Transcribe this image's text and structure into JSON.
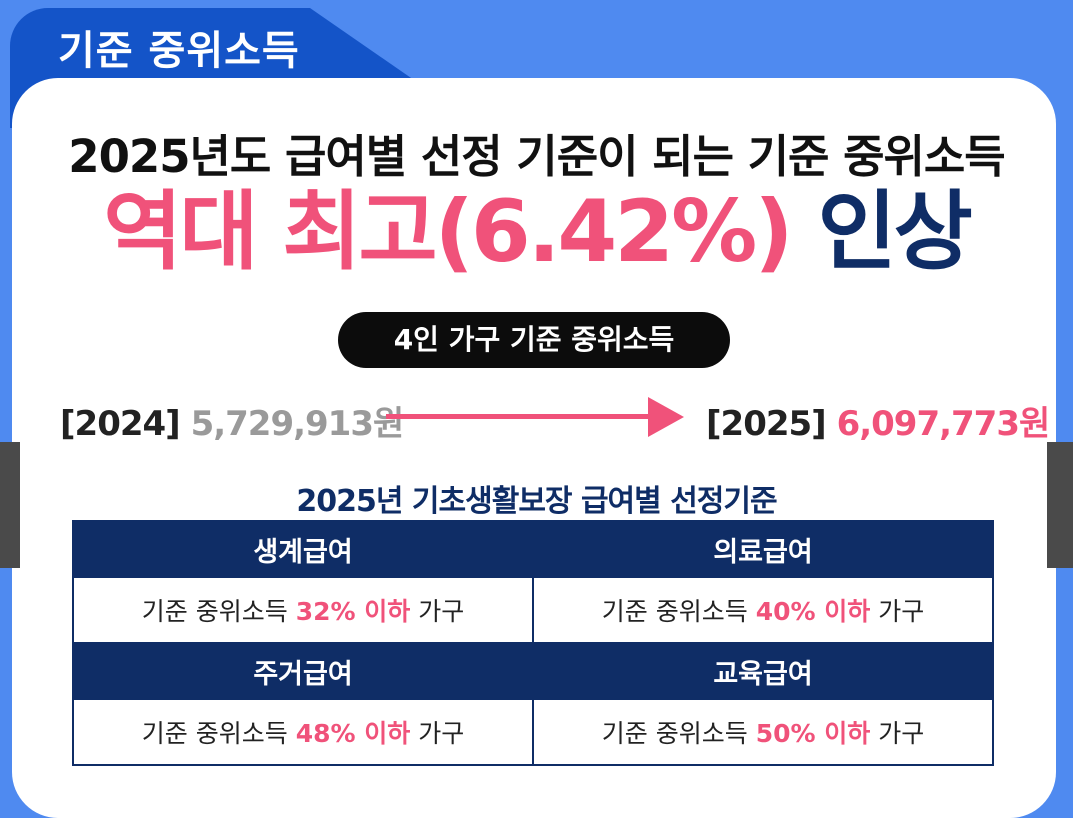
{
  "tab": {
    "title": "기준 중위소득"
  },
  "headline": "2025년도 급여별 선정 기준이 되는 기준 중위소득",
  "highlight": {
    "pink_text": "역대 최고(6.42%)",
    "navy_text": "인상"
  },
  "pill": "4인 가구 기준 중위소득",
  "comparison": {
    "from_year": "[2024]",
    "from_amount": "5,729,913원",
    "to_year": "[2025]",
    "to_amount": "6,097,773원"
  },
  "table_title": "2025년 기초생활보장 급여별 선정기준",
  "benefits": [
    {
      "name": "생계급여",
      "prefix": "기준 중위소득",
      "percent": "32% 이하",
      "suffix": "가구"
    },
    {
      "name": "의료급여",
      "prefix": "기준 중위소득",
      "percent": "40% 이하",
      "suffix": "가구"
    },
    {
      "name": "주거급여",
      "prefix": "기준 중위소득",
      "percent": "48% 이하",
      "suffix": "가구"
    },
    {
      "name": "교육급여",
      "prefix": "기준 중위소득",
      "percent": "50% 이하",
      "suffix": "가구"
    }
  ],
  "colors": {
    "background": "#4f8af0",
    "tab": "#1454c8",
    "navy": "#0f2d66",
    "pink": "#f0527a"
  }
}
